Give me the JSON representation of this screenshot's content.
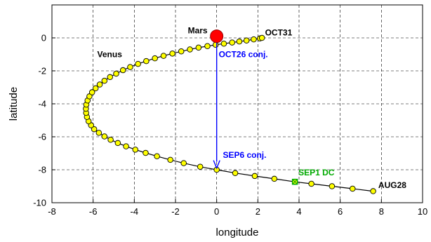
{
  "chart_data": {
    "type": "scatter",
    "title": "",
    "xlabel": "longitude",
    "ylabel": "latitude",
    "xlim": [
      -8,
      10
    ],
    "ylim": [
      -10,
      2
    ],
    "xticks": [
      "-8",
      "-6",
      "-4",
      "-2",
      "0",
      "2",
      "4",
      "6",
      "8",
      "10"
    ],
    "yticks": [
      "0",
      "-2",
      "-4",
      "-6",
      "-8",
      "-10"
    ],
    "grid": true,
    "grid_style": "dashed",
    "series": [
      {
        "name": "Venus",
        "color": "#ffff00",
        "edge_color": "#000000",
        "points": [
          [
            7.6,
            -9.3
          ],
          [
            6.6,
            -9.15
          ],
          [
            5.6,
            -9.0
          ],
          [
            4.6,
            -8.85
          ],
          [
            3.8,
            -8.73
          ],
          [
            2.8,
            -8.55
          ],
          [
            1.85,
            -8.38
          ],
          [
            0.9,
            -8.2
          ],
          [
            0.0,
            -8.0
          ],
          [
            -0.8,
            -7.82
          ],
          [
            -1.6,
            -7.6
          ],
          [
            -2.25,
            -7.4
          ],
          [
            -2.9,
            -7.18
          ],
          [
            -3.45,
            -6.98
          ],
          [
            -3.95,
            -6.78
          ],
          [
            -4.4,
            -6.58
          ],
          [
            -4.8,
            -6.38
          ],
          [
            -5.15,
            -6.18
          ],
          [
            -5.45,
            -5.98
          ],
          [
            -5.72,
            -5.76
          ],
          [
            -5.95,
            -5.54
          ],
          [
            -6.1,
            -5.3
          ],
          [
            -6.22,
            -5.06
          ],
          [
            -6.3,
            -4.8
          ],
          [
            -6.34,
            -4.55
          ],
          [
            -6.35,
            -4.3
          ],
          [
            -6.33,
            -4.05
          ],
          [
            -6.27,
            -3.8
          ],
          [
            -6.18,
            -3.55
          ],
          [
            -6.05,
            -3.3
          ],
          [
            -5.88,
            -3.06
          ],
          [
            -5.68,
            -2.83
          ],
          [
            -5.45,
            -2.6
          ],
          [
            -5.18,
            -2.38
          ],
          [
            -4.88,
            -2.17
          ],
          [
            -4.55,
            -1.96
          ],
          [
            -4.2,
            -1.77
          ],
          [
            -3.82,
            -1.58
          ],
          [
            -3.42,
            -1.41
          ],
          [
            -3.0,
            -1.24
          ],
          [
            -2.58,
            -1.09
          ],
          [
            -2.15,
            -0.95
          ],
          [
            -1.72,
            -0.82
          ],
          [
            -1.3,
            -0.7
          ],
          [
            -0.88,
            -0.59
          ],
          [
            -0.45,
            -0.5
          ],
          [
            -0.05,
            -0.42
          ],
          [
            0.35,
            -0.35
          ],
          [
            0.75,
            -0.28
          ],
          [
            1.1,
            -0.22
          ],
          [
            1.45,
            -0.16
          ],
          [
            1.8,
            -0.09
          ],
          [
            2.1,
            -0.03
          ],
          [
            2.2,
            0.0
          ]
        ]
      },
      {
        "name": "Mars",
        "color": "#ff0000",
        "points": [
          [
            0.0,
            0.1
          ]
        ]
      }
    ],
    "highlight_point": {
      "label": "SEP1 DC",
      "x": 3.8,
      "y": -8.73,
      "color": "#00aa00"
    },
    "arrow": {
      "from": [
        0.0,
        -0.3
      ],
      "to": [
        0.0,
        -7.9
      ],
      "color": "#0000ff"
    },
    "annotations": [
      {
        "text": "Mars",
        "x": -1.4,
        "y": 0.28,
        "color": "#000000"
      },
      {
        "text": "OCT31",
        "x": 2.35,
        "y": 0.15,
        "color": "#000000"
      },
      {
        "text": "Venus",
        "x": -5.8,
        "y": -1.18,
        "color": "#000000"
      },
      {
        "text": "OCT26 conj.",
        "x": 0.1,
        "y": -1.18,
        "color": "#0000ff"
      },
      {
        "text": "SEP6 conj.",
        "x": 0.3,
        "y": -7.28,
        "color": "#0000ff"
      },
      {
        "text": "SEP1 DC",
        "x": 0.0,
        "y": -8.33,
        "color": "#00aa00"
      },
      {
        "text": "AUG28",
        "x": 7.85,
        "y": -9.1,
        "color": "#000000"
      }
    ]
  }
}
